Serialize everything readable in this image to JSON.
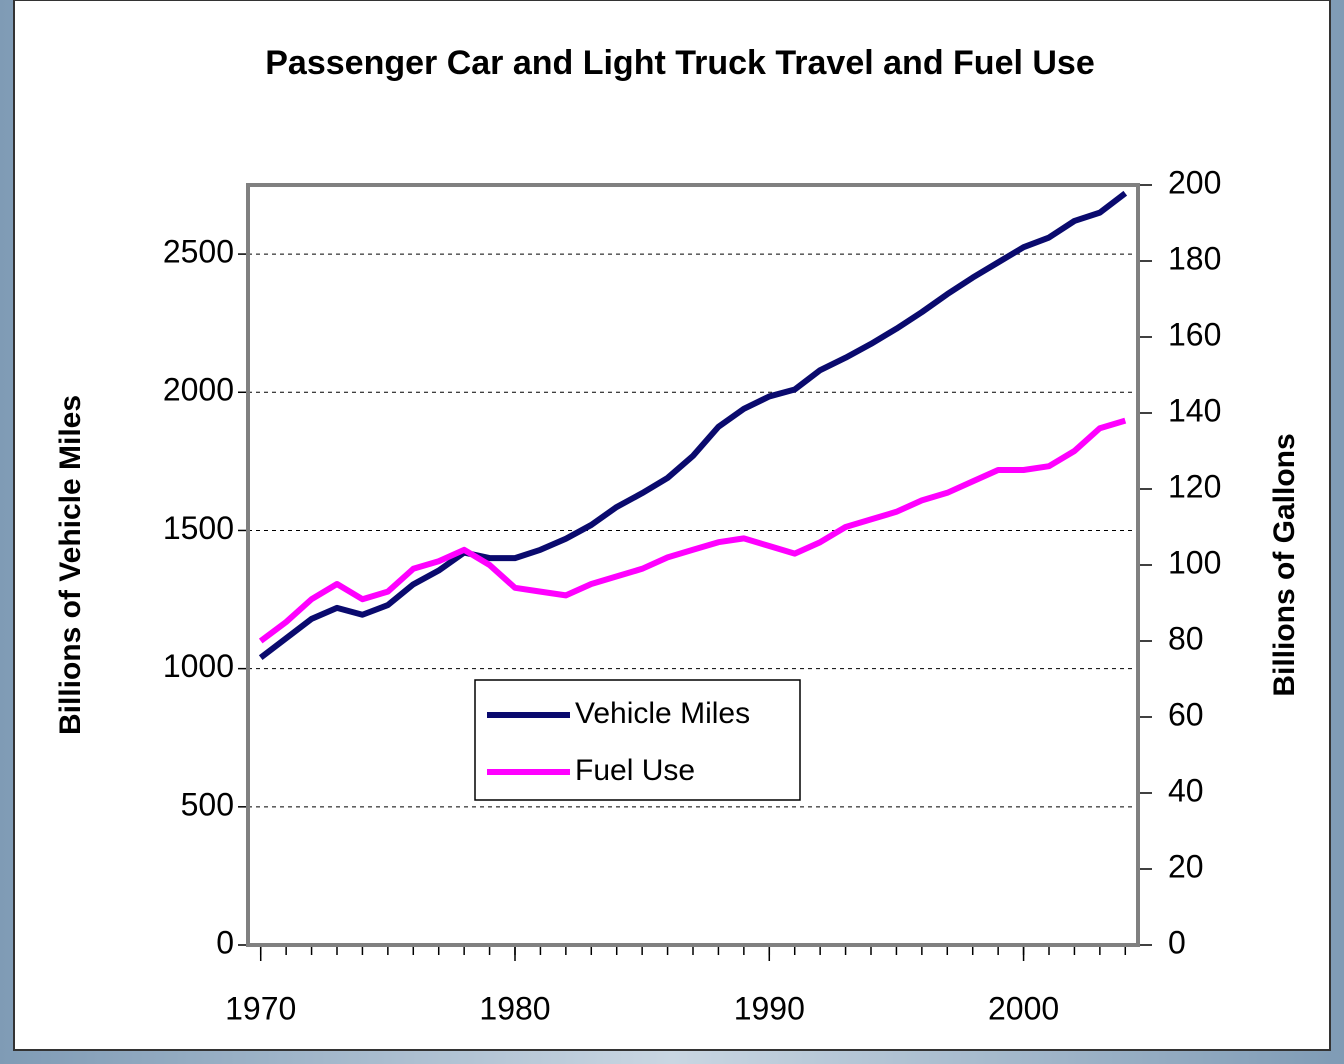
{
  "chart_data": {
    "type": "line",
    "title": "Passenger Car and Light Truck Travel and Fuel Use",
    "y_label": "Billions of Vehicle Miles",
    "y2_label": "Billions of Gallons",
    "x": [
      1970,
      1971,
      1972,
      1973,
      1974,
      1975,
      1976,
      1977,
      1978,
      1979,
      1980,
      1981,
      1982,
      1983,
      1984,
      1985,
      1986,
      1987,
      1988,
      1989,
      1990,
      1991,
      1992,
      1993,
      1994,
      1995,
      1996,
      1997,
      1998,
      1999,
      2000,
      2001,
      2002,
      2003,
      2004
    ],
    "series": [
      {
        "name": "Vehicle Miles",
        "color": "#0a0a6e",
        "values": [
          1040,
          1110,
          1180,
          1220,
          1195,
          1230,
          1305,
          1355,
          1420,
          1400,
          1400,
          1430,
          1470,
          1520,
          1585,
          1635,
          1690,
          1770,
          1875,
          1940,
          1985,
          2010,
          2080,
          2125,
          2175,
          2230,
          2290,
          2355,
          2415,
          2470,
          2525,
          2560,
          2620,
          2650,
          2720
        ]
      },
      {
        "name": "Fuel Use",
        "color": "#ff00ff",
        "axis": "y2",
        "values": [
          80,
          85,
          91,
          95,
          91,
          93,
          99,
          101,
          104,
          100,
          94,
          93,
          92,
          95,
          97,
          99,
          102,
          104,
          106,
          107,
          105,
          103,
          106,
          110,
          112,
          114,
          117,
          119,
          122,
          125,
          125,
          126,
          130,
          136,
          138
        ]
      }
    ],
    "xlim": [
      1969.5,
      2004.5
    ],
    "xticks": [
      1970,
      1980,
      1990,
      2000
    ],
    "ylim": [
      0,
      2750
    ],
    "yticks": [
      0,
      500,
      1000,
      1500,
      2000,
      2500
    ],
    "y2lim": [
      0,
      200
    ],
    "y2ticks": [
      0,
      20,
      40,
      60,
      80,
      100,
      120,
      140,
      160,
      180,
      200
    ],
    "grid": true,
    "legend": "center"
  }
}
